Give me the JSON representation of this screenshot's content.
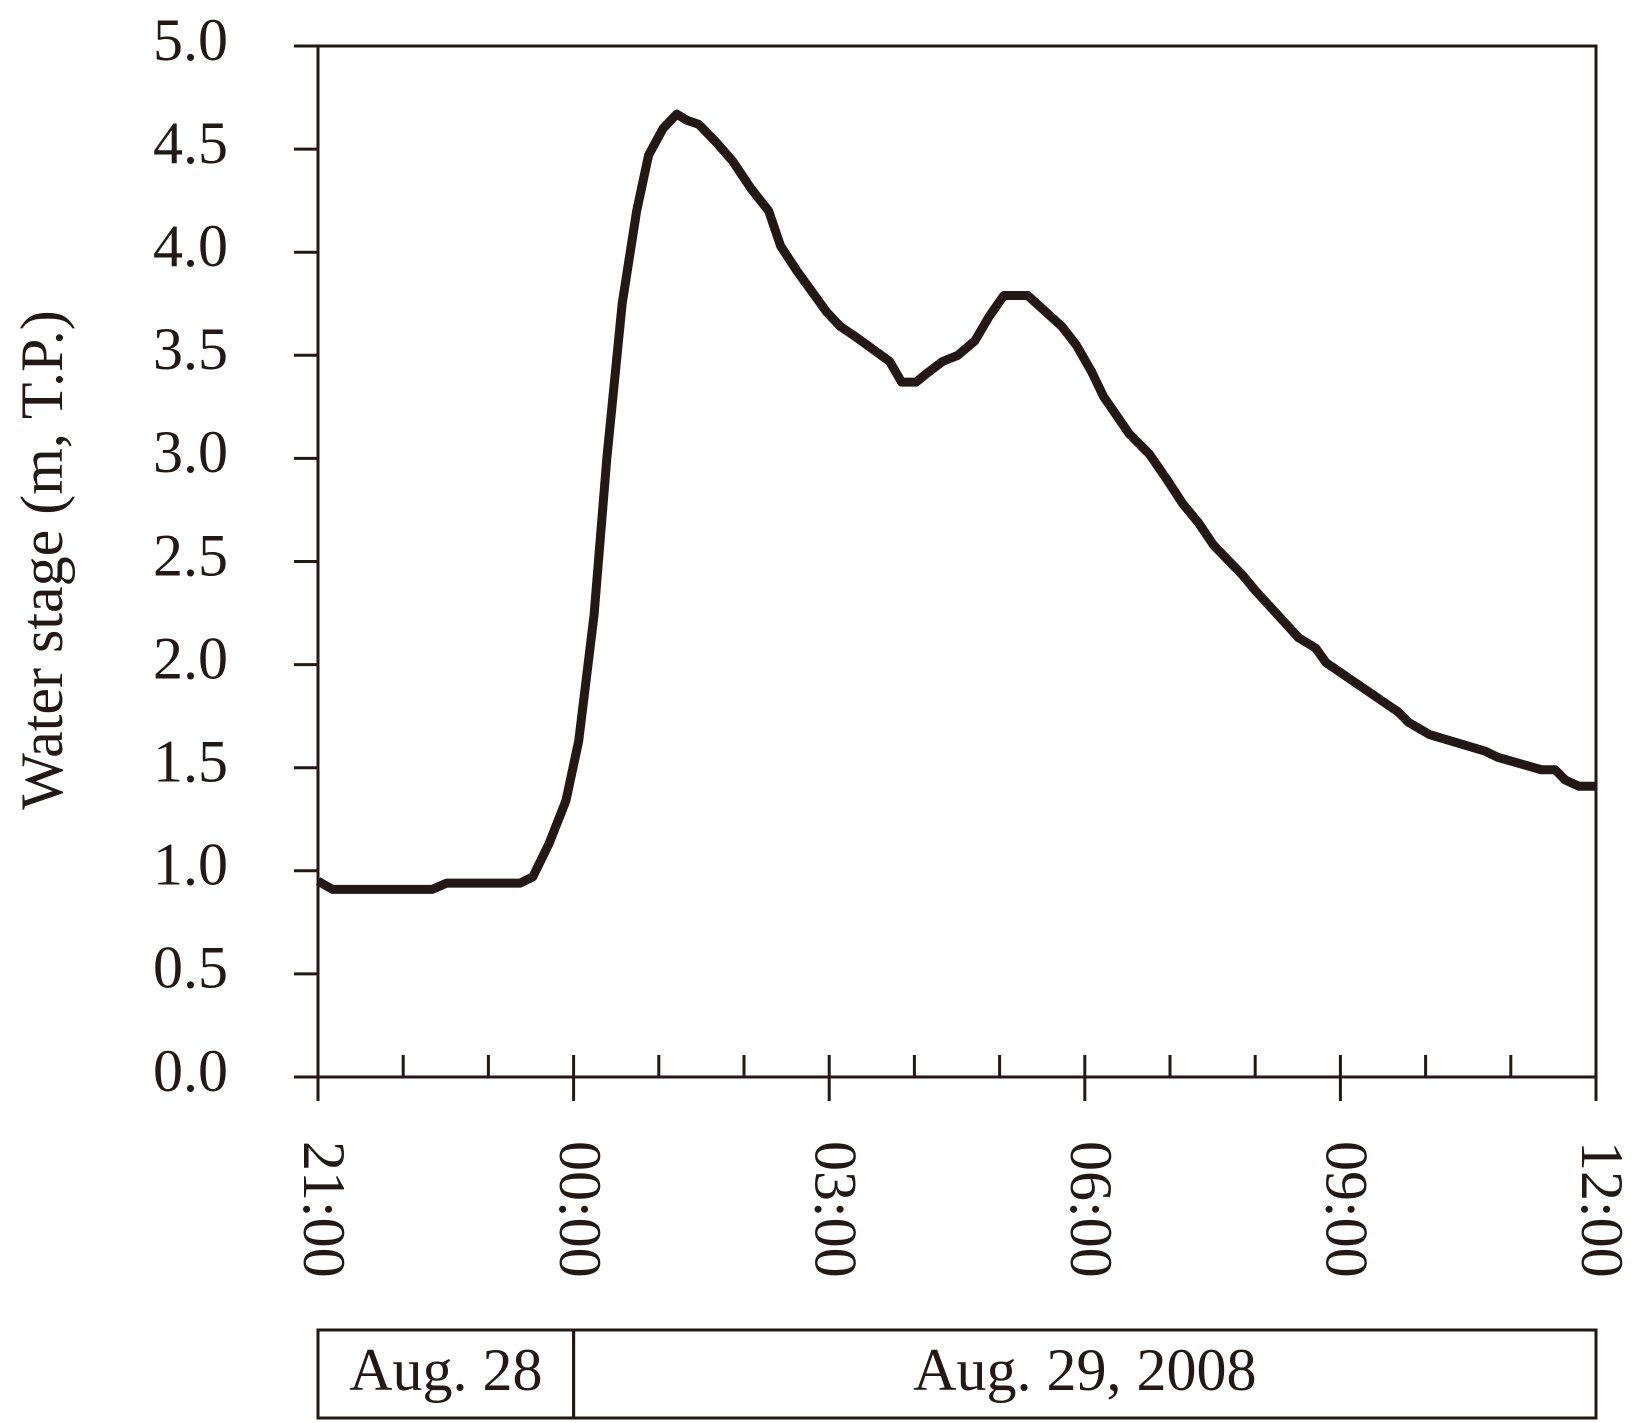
{
  "chart_data": {
    "type": "line",
    "y_label": "Water stage (m, T.P.)",
    "annotations": [
      "Aug. 28",
      "Aug. 29, 2008"
    ],
    "series": [
      {
        "name": "Water stage",
        "color": "#231815",
        "x": [
          0,
          0.17,
          1.34,
          1.51,
          2.37,
          2.52,
          2.71,
          2.91,
          3.06,
          3.24,
          3.39,
          3.57,
          3.74,
          3.88,
          4.05,
          4.21,
          4.33,
          4.47,
          4.68,
          4.87,
          5.08,
          5.29,
          5.43,
          5.62,
          5.97,
          6.13,
          6.31,
          6.71,
          6.85,
          7.02,
          7.17,
          7.33,
          7.51,
          7.71,
          7.88,
          8.05,
          8.33,
          8.73,
          8.9,
          9.08,
          9.22,
          9.52,
          9.76,
          9.96,
          10.15,
          10.33,
          10.51,
          10.86,
          11.0,
          11.51,
          11.71,
          11.83,
          12.68,
          12.8,
          13.05,
          13.7,
          13.85,
          14.36,
          14.52,
          14.64,
          14.8,
          15.0
        ],
        "values": [
          0.95,
          0.91,
          0.91,
          0.94,
          0.94,
          0.97,
          1.13,
          1.34,
          1.63,
          2.24,
          3.0,
          3.75,
          4.2,
          4.47,
          4.6,
          4.67,
          4.64,
          4.62,
          4.53,
          4.44,
          4.31,
          4.2,
          4.03,
          3.91,
          3.71,
          3.64,
          3.59,
          3.47,
          3.37,
          3.37,
          3.42,
          3.47,
          3.5,
          3.57,
          3.69,
          3.79,
          3.79,
          3.64,
          3.55,
          3.42,
          3.3,
          3.12,
          3.02,
          2.9,
          2.78,
          2.69,
          2.58,
          2.43,
          2.36,
          2.13,
          2.08,
          2.01,
          1.77,
          1.72,
          1.66,
          1.58,
          1.55,
          1.49,
          1.49,
          1.44,
          1.41,
          1.41
        ]
      }
    ],
    "xlim": [
      0,
      15
    ],
    "xticks": [
      {
        "value": 0,
        "label": "21:00"
      },
      {
        "value": 3,
        "label": "00:00"
      },
      {
        "value": 6,
        "label": "03:00"
      },
      {
        "value": 9,
        "label": "06:00"
      },
      {
        "value": 12,
        "label": "09:00"
      },
      {
        "value": 15,
        "label": "12:00"
      }
    ],
    "xminor_ticks": [
      1,
      2,
      4,
      5,
      7,
      8,
      10,
      11,
      13,
      14
    ],
    "ylim": [
      0,
      5
    ],
    "yticks": [
      {
        "value": 0,
        "label": "0.0"
      },
      {
        "value": 0.5,
        "label": "0.5"
      },
      {
        "value": 1,
        "label": "1.0"
      },
      {
        "value": 1.5,
        "label": "1.5"
      },
      {
        "value": 2,
        "label": "2.0"
      },
      {
        "value": 2.5,
        "label": "2.5"
      },
      {
        "value": 3,
        "label": "3.0"
      },
      {
        "value": 3.5,
        "label": "3.5"
      },
      {
        "value": 4,
        "label": "4.0"
      },
      {
        "value": 4.5,
        "label": "4.5"
      },
      {
        "value": 5,
        "label": "5.0"
      }
    ],
    "grid": false
  }
}
